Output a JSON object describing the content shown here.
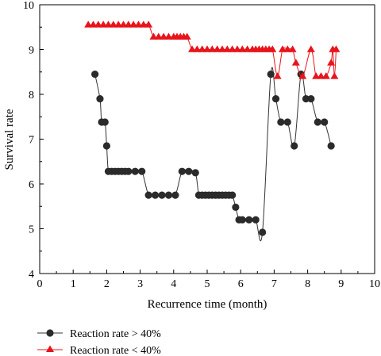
{
  "chart_data": {
    "type": "line",
    "xlabel": "Recurrence time (month)",
    "ylabel": "Survival rate",
    "xlim": [
      0,
      10
    ],
    "ylim": [
      4,
      10
    ],
    "x_ticks": [
      0,
      1,
      2,
      3,
      4,
      5,
      6,
      7,
      8,
      9,
      10
    ],
    "y_ticks": [
      4,
      5,
      6,
      7,
      8,
      9,
      10
    ],
    "grid": false,
    "legend_position": "bottom-left",
    "series": [
      {
        "name": "Reaction rate > 40%",
        "color": "#333333",
        "marker": "circle",
        "x": [
          1.65,
          1.8,
          1.85,
          1.95,
          2.0,
          2.05,
          2.15,
          2.25,
          2.35,
          2.45,
          2.55,
          2.65,
          2.85,
          3.05,
          3.25,
          3.45,
          3.65,
          3.85,
          4.05,
          4.25,
          4.45,
          4.65,
          4.75,
          4.85,
          4.95,
          5.05,
          5.15,
          5.25,
          5.35,
          5.45,
          5.55,
          5.65,
          5.75,
          5.85,
          5.95,
          6.05,
          6.25,
          6.45,
          6.65,
          6.9,
          7.05,
          7.2,
          7.4,
          7.6,
          7.8,
          7.95,
          8.1,
          8.3,
          8.5,
          8.7
        ],
        "y": [
          8.45,
          7.9,
          7.38,
          7.38,
          6.85,
          6.28,
          6.28,
          6.28,
          6.28,
          6.28,
          6.28,
          6.28,
          6.28,
          6.28,
          5.75,
          5.75,
          5.75,
          5.75,
          5.75,
          6.28,
          6.28,
          6.25,
          5.75,
          5.75,
          5.75,
          5.75,
          5.75,
          5.75,
          5.75,
          5.75,
          5.75,
          5.75,
          5.75,
          5.48,
          5.2,
          5.2,
          5.2,
          5.2,
          4.92,
          8.45,
          7.9,
          7.38,
          7.38,
          6.85,
          8.45,
          7.9,
          7.9,
          7.38,
          7.38,
          6.85
        ]
      },
      {
        "name": "Reaction rate < 40%",
        "color": "#e8141b",
        "marker": "triangle",
        "x": [
          1.45,
          1.6,
          1.75,
          1.9,
          2.05,
          2.2,
          2.35,
          2.5,
          2.65,
          2.8,
          2.95,
          3.1,
          3.25,
          3.4,
          3.55,
          3.7,
          3.85,
          4.0,
          4.1,
          4.2,
          4.3,
          4.4,
          4.55,
          4.7,
          4.85,
          5.0,
          5.15,
          5.3,
          5.45,
          5.6,
          5.75,
          5.9,
          6.05,
          6.2,
          6.35,
          6.45,
          6.55,
          6.65,
          6.75,
          6.85,
          6.95,
          7.1,
          7.25,
          7.4,
          7.55,
          7.65,
          7.85,
          8.1,
          8.25,
          8.4,
          8.55,
          8.7,
          8.75,
          8.8,
          8.85
        ],
        "y": [
          9.55,
          9.55,
          9.55,
          9.55,
          9.55,
          9.55,
          9.55,
          9.55,
          9.55,
          9.55,
          9.55,
          9.55,
          9.55,
          9.28,
          9.28,
          9.28,
          9.28,
          9.28,
          9.28,
          9.28,
          9.28,
          9.28,
          9.0,
          9.0,
          9.0,
          9.0,
          9.0,
          9.0,
          9.0,
          9.0,
          9.0,
          9.0,
          9.0,
          9.0,
          9.0,
          9.0,
          9.0,
          9.0,
          9.0,
          9.0,
          9.0,
          8.4,
          9.0,
          9.0,
          9.0,
          8.7,
          8.4,
          9.0,
          8.4,
          8.4,
          8.4,
          8.7,
          9.0,
          8.4,
          9.0
        ]
      }
    ]
  }
}
